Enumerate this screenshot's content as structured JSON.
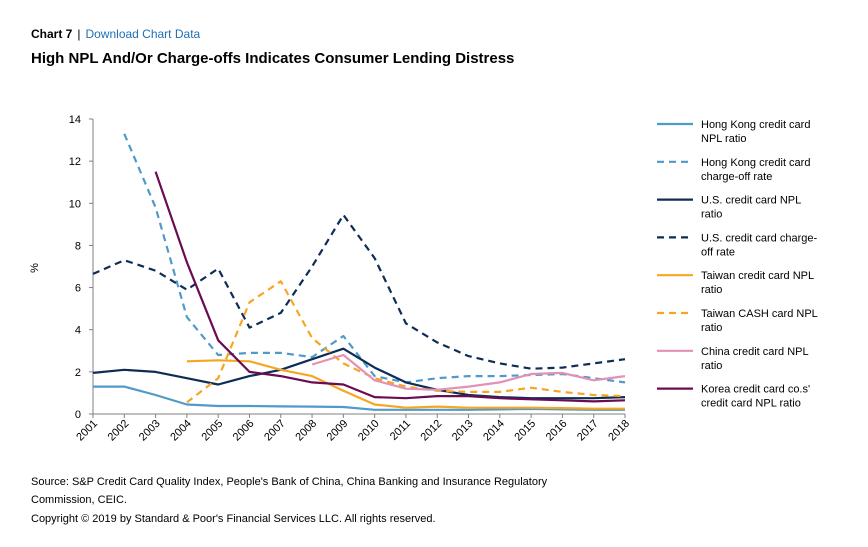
{
  "header": {
    "chart_number": "Chart 7",
    "separator": "|",
    "download_link": "Download Chart Data"
  },
  "title": "High NPL And/Or Charge-offs Indicates Consumer Lending Distress",
  "footer": {
    "source_line1": "Source: S&P Credit Card Quality Index, People's Bank of China, China Banking and Insurance Regulatory",
    "source_line2": "Commission, CEIC.",
    "copyright": "Copyright © 2019 by Standard & Poor's Financial Services LLC. All rights reserved."
  },
  "chart_data": {
    "type": "line",
    "ylabel": "%",
    "xlabel": "",
    "ylim": [
      0,
      14
    ],
    "yticks": [
      0,
      2,
      4,
      6,
      8,
      10,
      12,
      14
    ],
    "x": [
      "2001",
      "2002",
      "2003",
      "2004",
      "2005",
      "2006",
      "2007",
      "2008",
      "2009",
      "2010",
      "2011",
      "2012",
      "2013",
      "2014",
      "2015",
      "2016",
      "2017",
      "2018"
    ],
    "legend_position": "right",
    "series": [
      {
        "name": "Hong Kong credit card NPL ratio",
        "label_lines": [
          "Hong Kong credit card",
          "NPL ratio"
        ],
        "color": "#4f9ac9",
        "dash": "solid",
        "values": [
          1.3,
          1.3,
          0.9,
          0.45,
          0.38,
          0.38,
          0.36,
          0.35,
          0.33,
          0.2,
          0.2,
          0.2,
          0.2,
          0.22,
          0.24,
          0.22,
          0.2,
          0.2
        ]
      },
      {
        "name": "Hong Kong credit card charge-off rate",
        "label_lines": [
          "Hong Kong credit card",
          "charge-off rate"
        ],
        "color": "#4f9ac9",
        "dash": "dashed",
        "values": [
          null,
          13.3,
          9.8,
          4.6,
          2.8,
          2.9,
          2.9,
          2.7,
          3.7,
          1.8,
          1.5,
          1.7,
          1.8,
          1.8,
          1.85,
          1.9,
          1.7,
          1.5
        ]
      },
      {
        "name": "U.S. credit card NPL ratio",
        "label_lines": [
          "U.S. credit card NPL",
          "ratio"
        ],
        "color": "#0d2d57",
        "dash": "solid",
        "values": [
          1.95,
          2.1,
          2.0,
          1.7,
          1.4,
          1.8,
          2.1,
          2.6,
          3.1,
          2.2,
          1.5,
          1.15,
          0.9,
          0.8,
          0.75,
          0.75,
          0.75,
          0.8
        ]
      },
      {
        "name": "U.S. credit card charge-off rate",
        "label_lines": [
          "U.S. credit card charge-",
          "off rate"
        ],
        "color": "#0d2d57",
        "dash": "dashed",
        "values": [
          6.65,
          7.3,
          6.8,
          5.9,
          6.9,
          4.1,
          4.8,
          7.0,
          9.45,
          7.4,
          4.3,
          3.4,
          2.75,
          2.4,
          2.15,
          2.2,
          2.4,
          2.6
        ]
      },
      {
        "name": "Taiwan credit card NPL ratio",
        "label_lines": [
          "Taiwan credit card NPL",
          "ratio"
        ],
        "color": "#f6a623",
        "dash": "solid",
        "values": [
          null,
          null,
          null,
          2.5,
          2.55,
          2.5,
          2.1,
          1.8,
          1.1,
          0.45,
          0.3,
          0.35,
          0.3,
          0.3,
          0.3,
          0.28,
          0.25,
          0.25
        ]
      },
      {
        "name": "Taiwan CASH card NPL ratio",
        "label_lines": [
          "Taiwan CASH card NPL",
          "ratio"
        ],
        "color": "#f6a623",
        "dash": "dashed",
        "values": [
          null,
          null,
          null,
          0.55,
          1.7,
          5.3,
          6.3,
          3.6,
          2.4,
          1.7,
          1.3,
          1.1,
          1.05,
          1.05,
          1.25,
          1.05,
          0.9,
          0.85
        ]
      },
      {
        "name": "China credit card NPL ratio",
        "label_lines": [
          "China credit card NPL",
          "ratio"
        ],
        "color": "#e391b4",
        "dash": "solid",
        "values": [
          null,
          null,
          null,
          null,
          null,
          null,
          null,
          2.35,
          2.8,
          1.6,
          1.2,
          1.15,
          1.3,
          1.5,
          1.9,
          1.95,
          1.6,
          1.8
        ]
      },
      {
        "name": "Korea credit card co.s' credit card NPL ratio",
        "label_lines": [
          "Korea credit card co.s'",
          "credit card NPL ratio"
        ],
        "color": "#6b0b52",
        "dash": "solid",
        "values": [
          null,
          null,
          11.5,
          7.2,
          3.5,
          2.0,
          1.8,
          1.5,
          1.4,
          0.8,
          0.75,
          0.85,
          0.85,
          0.75,
          0.7,
          0.65,
          0.6,
          0.65
        ]
      }
    ]
  }
}
